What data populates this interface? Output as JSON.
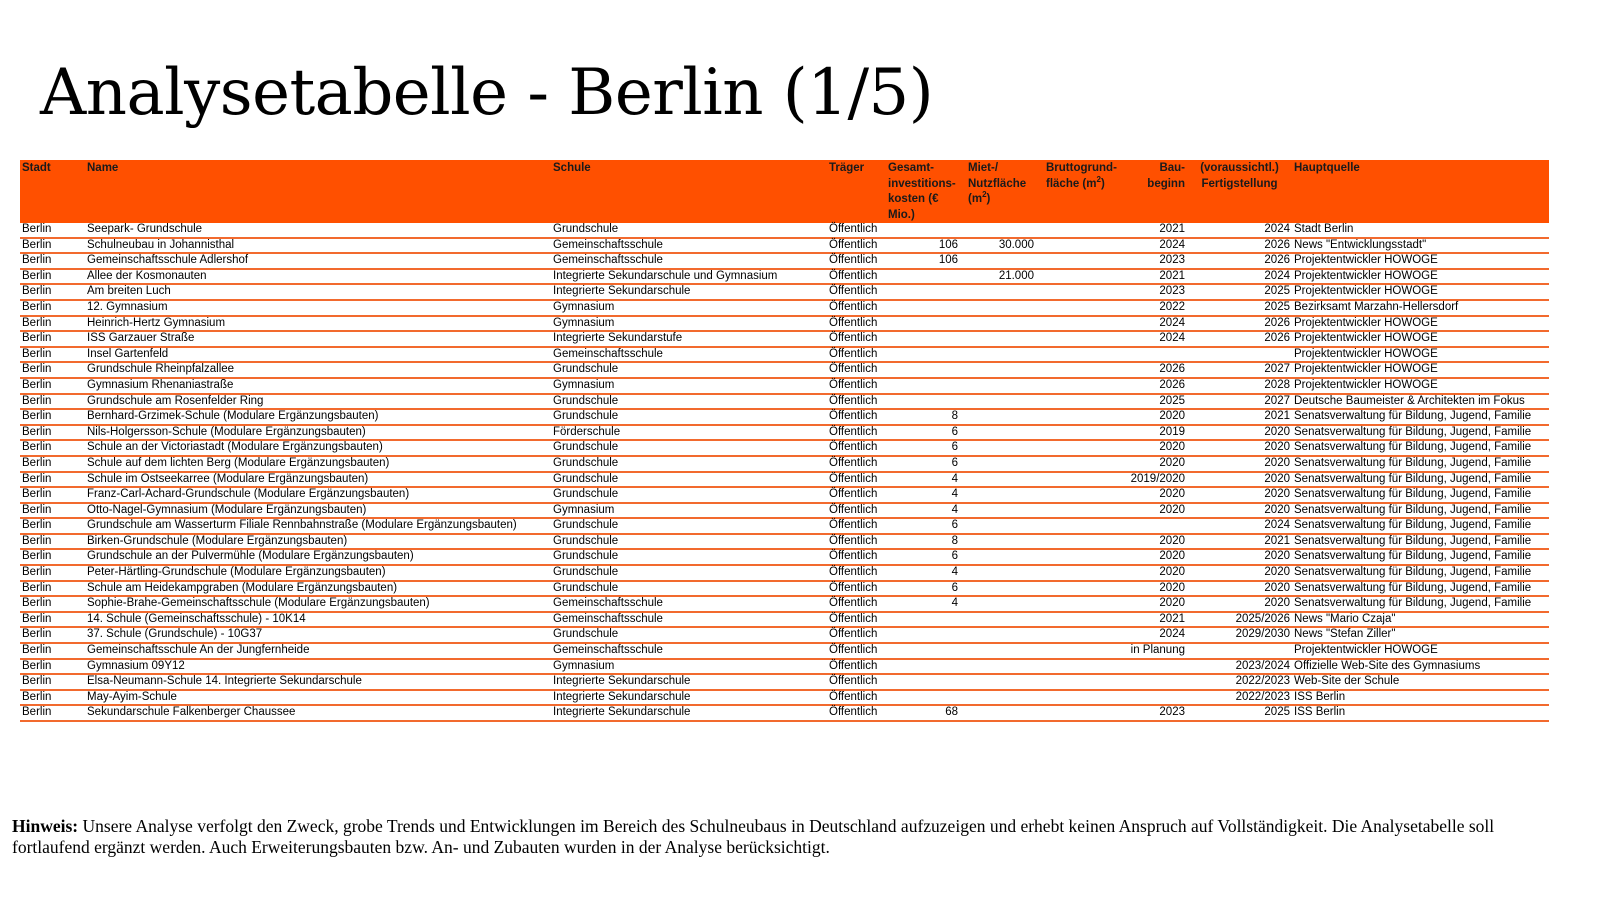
{
  "title": "Analysetabelle - Berlin (1/5)",
  "colors": {
    "header_bg": "#FF5000",
    "row_line": "#F26A2E"
  },
  "table": {
    "headers": [
      {
        "text": "Stadt"
      },
      {
        "text": "Name"
      },
      {
        "text": "Schule"
      },
      {
        "text": "Träger"
      },
      {
        "text": "Gesamt-investitions-kosten (€ Mio.)"
      },
      {
        "text": "Miet-/ Nutzfläche (m²)"
      },
      {
        "text": "Bruttogrund-fläche (m²)"
      },
      {
        "text": "Bau-beginn"
      },
      {
        "text": "(voraussichtl.) Fertigstellung"
      },
      {
        "text": "Hauptquelle"
      }
    ],
    "rows": [
      [
        "Berlin",
        "Seepark- Grundschule",
        "Grundschule",
        "Öffentlich",
        "",
        "",
        "",
        "2021",
        "2024",
        "Stadt Berlin"
      ],
      [
        "Berlin",
        "Schulneubau in Johannisthal",
        "Gemeinschaftsschule",
        "Öffentlich",
        "106",
        "30.000",
        "",
        "2024",
        "2026",
        "News \"Entwicklungsstadt\""
      ],
      [
        "Berlin",
        "Gemeinschaftsschule Adlershof",
        "Gemeinschaftsschule",
        "Öffentlich",
        "106",
        "",
        "",
        "2023",
        "2026",
        "Projektentwickler HOWOGE"
      ],
      [
        "Berlin",
        "Allee der Kosmonauten",
        "Integrierte Sekundarschule und Gymnasium",
        "Öffentlich",
        "",
        "21.000",
        "",
        "2021",
        "2024",
        "Projektentwickler HOWOGE"
      ],
      [
        "Berlin",
        "Am breiten Luch",
        "Integrierte Sekundarschule",
        "Öffentlich",
        "",
        "",
        "",
        "2023",
        "2025",
        "Projektentwickler HOWOGE"
      ],
      [
        "Berlin",
        "12. Gymnasium",
        "Gymnasium",
        "Öffentlich",
        "",
        "",
        "",
        "2022",
        "2025",
        "Bezirksamt Marzahn-Hellersdorf"
      ],
      [
        "Berlin",
        "Heinrich-Hertz Gymnasium",
        "Gymnasium",
        "Öffentlich",
        "",
        "",
        "",
        "2024",
        "2026",
        "Projektentwickler HOWOGE"
      ],
      [
        "Berlin",
        "ISS Garzauer Straße",
        "Integrierte Sekundarstufe",
        "Öffentlich",
        "",
        "",
        "",
        "2024",
        "2026",
        "Projektentwickler HOWOGE"
      ],
      [
        "Berlin",
        "Insel Gartenfeld",
        "Gemeinschaftsschule",
        "Öffentlich",
        "",
        "",
        "",
        "",
        "",
        "Projektentwickler HOWOGE"
      ],
      [
        "Berlin",
        "Grundschule Rheinpfalzallee",
        "Grundschule",
        "Öffentlich",
        "",
        "",
        "",
        "2026",
        "2027",
        "Projektentwickler HOWOGE"
      ],
      [
        "Berlin",
        "Gymnasium Rhenaniastraße",
        "Gymnasium",
        "Öffentlich",
        "",
        "",
        "",
        "2026",
        "2028",
        "Projektentwickler HOWOGE"
      ],
      [
        "Berlin",
        "Grundschule am Rosenfelder Ring",
        "Grundschule",
        "Öffentlich",
        "",
        "",
        "",
        "2025",
        "2027",
        "Deutsche Baumeister & Architekten im Fokus"
      ],
      [
        "Berlin",
        "Bernhard-Grzimek-Schule (Modulare Ergänzungsbauten)",
        "Grundschule",
        "Öffentlich",
        "8",
        "",
        "",
        "2020",
        "2021",
        "Senatsverwaltung für Bildung, Jugend, Familie"
      ],
      [
        "Berlin",
        "Nils-Holgersson-Schule (Modulare Ergänzungsbauten)",
        "Förderschule",
        "Öffentlich",
        "6",
        "",
        "",
        "2019",
        "2020",
        "Senatsverwaltung für Bildung, Jugend, Familie"
      ],
      [
        "Berlin",
        "Schule an der Victoriastadt (Modulare Ergänzungsbauten)",
        "Grundschule",
        "Öffentlich",
        "6",
        "",
        "",
        "2020",
        "2020",
        "Senatsverwaltung für Bildung, Jugend, Familie"
      ],
      [
        "Berlin",
        "Schule auf dem lichten Berg (Modulare Ergänzungsbauten)",
        "Grundschule",
        "Öffentlich",
        "6",
        "",
        "",
        "2020",
        "2020",
        "Senatsverwaltung für Bildung, Jugend, Familie"
      ],
      [
        "Berlin",
        "Schule im Ostseekarree (Modulare Ergänzungsbauten)",
        "Grundschule",
        "Öffentlich",
        "4",
        "",
        "",
        "2019/2020",
        "2020",
        "Senatsverwaltung für Bildung, Jugend, Familie"
      ],
      [
        "Berlin",
        "Franz-Carl-Achard-Grundschule (Modulare Ergänzungsbauten)",
        "Grundschule",
        "Öffentlich",
        "4",
        "",
        "",
        "2020",
        "2020",
        "Senatsverwaltung für Bildung, Jugend, Familie"
      ],
      [
        "Berlin",
        "Otto-Nagel-Gymnasium (Modulare Ergänzungsbauten)",
        "Gymnasium",
        "Öffentlich",
        "4",
        "",
        "",
        "2020",
        "2020",
        "Senatsverwaltung für Bildung, Jugend, Familie"
      ],
      [
        "Berlin",
        "Grundschule am Wasserturm Filiale Rennbahnstraße (Modulare Ergänzungsbauten)",
        "Grundschule",
        "Öffentlich",
        "6",
        "",
        "",
        "",
        "2024",
        "Senatsverwaltung für Bildung, Jugend, Familie"
      ],
      [
        "Berlin",
        "Birken-Grundschule (Modulare Ergänzungsbauten)",
        "Grundschule",
        "Öffentlich",
        "8",
        "",
        "",
        "2020",
        "2021",
        "Senatsverwaltung für Bildung, Jugend, Familie"
      ],
      [
        "Berlin",
        "Grundschule an der Pulvermühle (Modulare Ergänzungsbauten)",
        "Grundschule",
        "Öffentlich",
        "6",
        "",
        "",
        "2020",
        "2020",
        "Senatsverwaltung für Bildung, Jugend, Familie"
      ],
      [
        "Berlin",
        "Peter-Härtling-Grundschule (Modulare Ergänzungsbauten)",
        "Grundschule",
        "Öffentlich",
        "4",
        "",
        "",
        "2020",
        "2020",
        "Senatsverwaltung für Bildung, Jugend, Familie"
      ],
      [
        "Berlin",
        "Schule am Heidekampgraben (Modulare Ergänzungsbauten)",
        "Grundschule",
        "Öffentlich",
        "6",
        "",
        "",
        "2020",
        "2020",
        "Senatsverwaltung für Bildung, Jugend, Familie"
      ],
      [
        "Berlin",
        "Sophie-Brahe-Gemeinschaftsschule (Modulare Ergänzungsbauten)",
        "Gemeinschaftsschule",
        "Öffentlich",
        "4",
        "",
        "",
        "2020",
        "2020",
        "Senatsverwaltung für Bildung, Jugend, Familie"
      ],
      [
        "Berlin",
        "14. Schule (Gemeinschaftsschule) - 10K14",
        "Gemeinschaftsschule",
        "Öffentlich",
        "",
        "",
        "",
        "2021",
        "2025/2026",
        "News \"Mario Czaja\""
      ],
      [
        "Berlin",
        "37. Schule (Grundschule) - 10G37",
        "Grundschule",
        "Öffentlich",
        "",
        "",
        "",
        "2024",
        "2029/2030",
        "News \"Stefan Ziller\""
      ],
      [
        "Berlin",
        "Gemeinschaftsschule  An der Jungfernheide",
        "Gemeinschaftsschule",
        "Öffentlich",
        "",
        "",
        "",
        "in Planung",
        "",
        "Projektentwickler HOWOGE"
      ],
      [
        "Berlin",
        "Gymnasium 09Y12",
        "Gymnasium",
        "Öffentlich",
        "",
        "",
        "",
        "",
        "2023/2024",
        "Offizielle Web-Site des Gymnasiums"
      ],
      [
        "Berlin",
        "Elsa-Neumann-Schule 14. Integrierte Sekundarschule",
        "Integrierte Sekundarschule",
        "Öffentlich",
        "",
        "",
        "",
        "",
        "2022/2023",
        "Web-Site der Schule"
      ],
      [
        "Berlin",
        "May-Ayim-Schule",
        "Integrierte Sekundarschule",
        "Öffentlich",
        "",
        "",
        "",
        "",
        "2022/2023",
        "ISS Berlin"
      ],
      [
        "Berlin",
        "Sekundarschule Falkenberger Chaussee",
        "Integrierte Sekundarschule",
        "Öffentlich",
        "68",
        "",
        "",
        "2023",
        "2025",
        "ISS Berlin"
      ]
    ]
  },
  "note": {
    "label": "Hinweis:",
    "text": " Unsere Analyse verfolgt den Zweck, grobe Trends und Entwicklungen im Bereich des Schulneubaus in Deutschland aufzuzeigen und erhebt keinen Anspruch auf Vollständigkeit. Die Analysetabelle soll fortlaufend ergänzt werden. Auch Erweiterungsbauten bzw. An- und Zubauten wurden in der Analyse berücksichtigt."
  }
}
